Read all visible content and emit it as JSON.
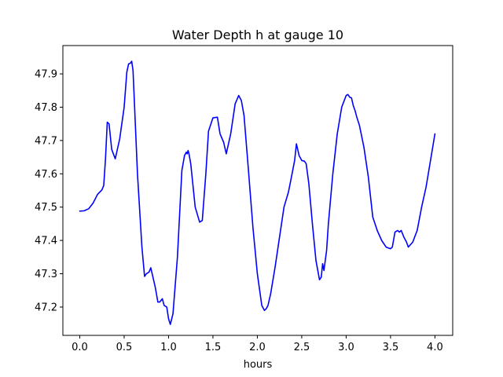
{
  "chart_data": {
    "type": "line",
    "title": "Water Depth h at gauge 10",
    "xlabel": "hours",
    "ylabel": "",
    "xlim": [
      -0.19,
      4.2
    ],
    "ylim": [
      47.115,
      47.985
    ],
    "xticks": [
      {
        "value": 0.0,
        "label": "0.0"
      },
      {
        "value": 0.5,
        "label": "0.5"
      },
      {
        "value": 1.0,
        "label": "1.0"
      },
      {
        "value": 1.5,
        "label": "1.5"
      },
      {
        "value": 2.0,
        "label": "2.0"
      },
      {
        "value": 2.5,
        "label": "2.5"
      },
      {
        "value": 3.0,
        "label": "3.0"
      },
      {
        "value": 3.5,
        "label": "3.5"
      },
      {
        "value": 4.0,
        "label": "4.0"
      }
    ],
    "yticks": [
      {
        "value": 47.2,
        "label": "47.2"
      },
      {
        "value": 47.3,
        "label": "47.3"
      },
      {
        "value": 47.4,
        "label": "47.4"
      },
      {
        "value": 47.5,
        "label": "47.5"
      },
      {
        "value": 47.6,
        "label": "47.6"
      },
      {
        "value": 47.7,
        "label": "47.7"
      },
      {
        "value": 47.8,
        "label": "47.8"
      },
      {
        "value": 47.9,
        "label": "47.9"
      }
    ],
    "grid": false,
    "series": [
      {
        "color": "#0000ff",
        "x": [
          0.0,
          0.05,
          0.1,
          0.15,
          0.2,
          0.25,
          0.27,
          0.29,
          0.31,
          0.33,
          0.36,
          0.4,
          0.45,
          0.5,
          0.53,
          0.55,
          0.57,
          0.585,
          0.6,
          0.65,
          0.7,
          0.73,
          0.75,
          0.78,
          0.8,
          0.85,
          0.88,
          0.9,
          0.93,
          0.95,
          0.98,
          1.0,
          1.02,
          1.05,
          1.1,
          1.15,
          1.18,
          1.2,
          1.21,
          1.22,
          1.23,
          1.25,
          1.3,
          1.35,
          1.38,
          1.42,
          1.45,
          1.5,
          1.55,
          1.58,
          1.62,
          1.65,
          1.7,
          1.75,
          1.79,
          1.82,
          1.85,
          1.9,
          1.95,
          2.0,
          2.05,
          2.08,
          2.1,
          2.12,
          2.15,
          2.2,
          2.25,
          2.3,
          2.35,
          2.38,
          2.42,
          2.44,
          2.47,
          2.5,
          2.53,
          2.55,
          2.58,
          2.62,
          2.66,
          2.7,
          2.72,
          2.735,
          2.75,
          2.77,
          2.78,
          2.8,
          2.85,
          2.9,
          2.95,
          3.0,
          3.02,
          3.04,
          3.06,
          3.08,
          3.1,
          3.12,
          3.15,
          3.2,
          3.25,
          3.3,
          3.35,
          3.4,
          3.45,
          3.5,
          3.52,
          3.55,
          3.58,
          3.6,
          3.62,
          3.65,
          3.68,
          3.7,
          3.75,
          3.8,
          3.85,
          3.9,
          3.95,
          4.0
        ],
        "y": [
          47.488,
          47.489,
          47.495,
          47.512,
          47.538,
          47.552,
          47.565,
          47.645,
          47.755,
          47.75,
          47.673,
          47.645,
          47.705,
          47.8,
          47.905,
          47.93,
          47.932,
          47.938,
          47.91,
          47.6,
          47.38,
          47.292,
          47.3,
          47.305,
          47.318,
          47.26,
          47.215,
          47.215,
          47.225,
          47.205,
          47.2,
          47.165,
          47.148,
          47.18,
          47.35,
          47.61,
          47.655,
          47.665,
          47.66,
          47.67,
          47.66,
          47.63,
          47.5,
          47.455,
          47.46,
          47.6,
          47.728,
          47.768,
          47.77,
          47.72,
          47.695,
          47.66,
          47.72,
          47.81,
          47.835,
          47.82,
          47.775,
          47.61,
          47.44,
          47.3,
          47.205,
          47.19,
          47.195,
          47.205,
          47.24,
          47.32,
          47.41,
          47.5,
          47.545,
          47.585,
          47.64,
          47.69,
          47.655,
          47.64,
          47.638,
          47.63,
          47.57,
          47.45,
          47.34,
          47.282,
          47.29,
          47.33,
          47.31,
          47.35,
          47.37,
          47.45,
          47.6,
          47.72,
          47.8,
          47.835,
          47.838,
          47.83,
          47.828,
          47.805,
          47.79,
          47.77,
          47.745,
          47.68,
          47.59,
          47.47,
          47.43,
          47.4,
          47.38,
          47.375,
          47.38,
          47.425,
          47.43,
          47.425,
          47.43,
          47.41,
          47.395,
          47.38,
          47.395,
          47.43,
          47.5,
          47.56,
          47.64,
          47.72
        ]
      }
    ]
  }
}
